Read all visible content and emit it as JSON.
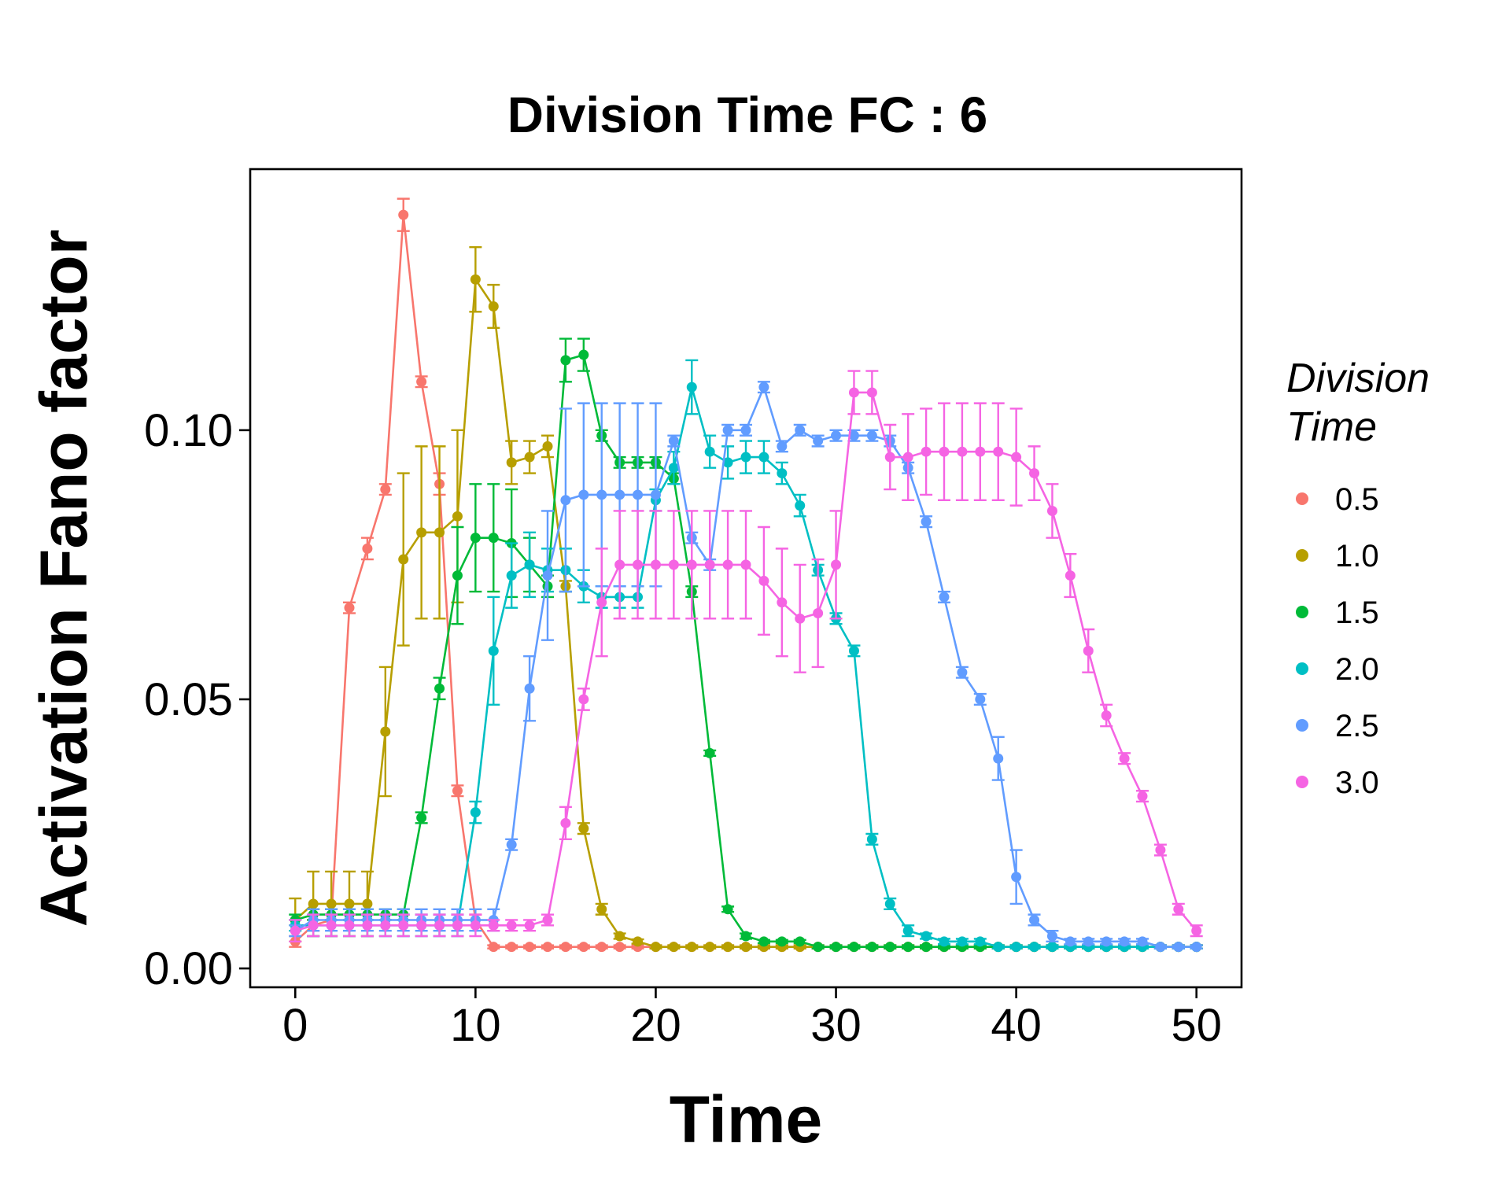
{
  "chart_data": {
    "type": "line",
    "title": "Division Time FC : 6",
    "xlabel": "Time",
    "ylabel": "Activation Fano factor",
    "xlim": [
      -2.5,
      52.5
    ],
    "ylim": [
      -0.0035,
      0.1485
    ],
    "x_ticks": [
      0,
      10,
      20,
      30,
      40,
      50
    ],
    "x_tick_labels": [
      "0",
      "10",
      "20",
      "30",
      "40",
      "50"
    ],
    "y_ticks": [
      0.0,
      0.05,
      0.1
    ],
    "y_tick_labels": [
      "0.00",
      "0.05",
      "0.10"
    ],
    "grid": false,
    "legend": {
      "title_lines": [
        "Division",
        "Time"
      ],
      "placement": "right"
    },
    "series": [
      {
        "name": "0.5",
        "color": "#F8766D",
        "x": [
          0,
          1,
          2,
          3,
          4,
          5,
          6,
          7,
          8,
          9,
          10,
          11,
          12,
          13,
          14,
          15,
          16,
          17,
          18,
          19,
          20,
          21,
          22,
          23,
          24,
          25,
          26,
          27,
          28,
          29,
          30,
          31,
          32,
          33,
          34,
          35,
          36,
          37,
          38,
          39,
          40,
          41,
          42,
          43,
          44,
          45,
          46,
          47,
          48,
          49,
          50
        ],
        "y": [
          0.005,
          0.008,
          0.009,
          0.067,
          0.078,
          0.089,
          0.14,
          0.109,
          0.09,
          0.033,
          0.009,
          0.004,
          0.004,
          0.004,
          0.004,
          0.004,
          0.004,
          0.004,
          0.004,
          0.004,
          0.004,
          0.004,
          0.004,
          0.004,
          0.004,
          0.004,
          0.004,
          0.004,
          0.004,
          0.004,
          0.004,
          0.004,
          0.004,
          0.004,
          0.004,
          0.004,
          0.004,
          0.004,
          0.004,
          0.004,
          0.004,
          0.004,
          0.004,
          0.004,
          0.004,
          0.004,
          0.004,
          0.004,
          0.004,
          0.004,
          0.004
        ],
        "err": [
          0.001,
          0.001,
          0.001,
          0.001,
          0.002,
          0.001,
          0.003,
          0.001,
          0.002,
          0.001,
          0.001,
          0.0003,
          0.0003,
          0.0003,
          0.0003,
          0.0003,
          0.0003,
          0.0003,
          0.0003,
          0.0003,
          0.0003,
          0.0003,
          0.0003,
          0.0003,
          0.0003,
          0.0003,
          0.0003,
          0.0003,
          0.0003,
          0.0003,
          0.0003,
          0.0003,
          0.0003,
          0.0003,
          0.0003,
          0.0003,
          0.0003,
          0.0003,
          0.0003,
          0.0003,
          0.0003,
          0.0003,
          0.0003,
          0.0003,
          0.0003,
          0.0003,
          0.0003,
          0.0003,
          0.0003,
          0.0003,
          0.0003
        ]
      },
      {
        "name": "1.0",
        "color": "#B79F00",
        "x": [
          0,
          1,
          2,
          3,
          4,
          5,
          6,
          7,
          8,
          9,
          10,
          11,
          12,
          13,
          14,
          15,
          16,
          17,
          18,
          19,
          20,
          21,
          22,
          23,
          24,
          25,
          26,
          27,
          28,
          29,
          30,
          31,
          32,
          33,
          34,
          35,
          36,
          37,
          38,
          39,
          40,
          41,
          42,
          43,
          44,
          45,
          46,
          47,
          48,
          49,
          50
        ],
        "y": [
          0.009,
          0.012,
          0.012,
          0.012,
          0.012,
          0.044,
          0.076,
          0.081,
          0.081,
          0.084,
          0.128,
          0.123,
          0.094,
          0.095,
          0.097,
          0.071,
          0.026,
          0.011,
          0.006,
          0.005,
          0.004,
          0.004,
          0.004,
          0.004,
          0.004,
          0.004,
          0.004,
          0.004,
          0.004,
          0.004,
          0.004,
          0.004,
          0.004,
          0.004,
          0.004,
          0.004,
          0.004,
          0.004,
          0.004,
          0.004,
          0.004,
          0.004,
          0.004,
          0.004,
          0.004,
          0.004,
          0.004,
          0.004,
          0.004,
          0.004,
          0.004
        ],
        "err": [
          0.004,
          0.006,
          0.006,
          0.006,
          0.006,
          0.012,
          0.016,
          0.016,
          0.016,
          0.016,
          0.006,
          0.004,
          0.004,
          0.003,
          0.002,
          0.001,
          0.001,
          0.001,
          0.0005,
          0.0004,
          0.0003,
          0.0003,
          0.0003,
          0.0003,
          0.0003,
          0.0003,
          0.0003,
          0.0003,
          0.0003,
          0.0003,
          0.0003,
          0.0003,
          0.0003,
          0.0003,
          0.0003,
          0.0003,
          0.0003,
          0.0003,
          0.0003,
          0.0003,
          0.0003,
          0.0003,
          0.0003,
          0.0003,
          0.0003,
          0.0003,
          0.0003,
          0.0003,
          0.0003,
          0.0003,
          0.0003
        ]
      },
      {
        "name": "1.5",
        "color": "#00BA38",
        "x": [
          0,
          1,
          2,
          3,
          4,
          5,
          6,
          7,
          8,
          9,
          10,
          11,
          12,
          13,
          14,
          15,
          16,
          17,
          18,
          19,
          20,
          21,
          22,
          23,
          24,
          25,
          26,
          27,
          28,
          29,
          30,
          31,
          32,
          33,
          34,
          35,
          36,
          37,
          38,
          39,
          40,
          41,
          42,
          43,
          44,
          45,
          46,
          47,
          48,
          49,
          50
        ],
        "y": [
          0.009,
          0.01,
          0.01,
          0.01,
          0.01,
          0.01,
          0.01,
          0.028,
          0.052,
          0.073,
          0.08,
          0.08,
          0.079,
          0.075,
          0.071,
          0.113,
          0.114,
          0.099,
          0.094,
          0.094,
          0.094,
          0.091,
          0.07,
          0.04,
          0.011,
          0.006,
          0.005,
          0.005,
          0.005,
          0.004,
          0.004,
          0.004,
          0.004,
          0.004,
          0.004,
          0.004,
          0.004,
          0.004,
          0.004,
          0.004,
          0.004,
          0.004,
          0.004,
          0.004,
          0.004,
          0.004,
          0.004,
          0.004,
          0.004,
          0.004,
          0.004
        ],
        "err": [
          0.001,
          0.001,
          0.001,
          0.001,
          0.001,
          0.001,
          0.001,
          0.001,
          0.002,
          0.009,
          0.01,
          0.01,
          0.01,
          0.005,
          0.002,
          0.004,
          0.003,
          0.001,
          0.001,
          0.001,
          0.001,
          0.001,
          0.001,
          0.0005,
          0.0005,
          0.0005,
          0.0003,
          0.0003,
          0.0003,
          0.0003,
          0.0003,
          0.0003,
          0.0003,
          0.0003,
          0.0003,
          0.0003,
          0.0003,
          0.0003,
          0.0003,
          0.0003,
          0.0003,
          0.0003,
          0.0003,
          0.0003,
          0.0003,
          0.0003,
          0.0003,
          0.0003,
          0.0003,
          0.0003,
          0.0003
        ]
      },
      {
        "name": "2.0",
        "color": "#00BFC4",
        "x": [
          0,
          1,
          2,
          3,
          4,
          5,
          6,
          7,
          8,
          9,
          10,
          11,
          12,
          13,
          14,
          15,
          16,
          17,
          18,
          19,
          20,
          21,
          22,
          23,
          24,
          25,
          26,
          27,
          28,
          29,
          30,
          31,
          32,
          33,
          34,
          35,
          36,
          37,
          38,
          39,
          40,
          41,
          42,
          43,
          44,
          45,
          46,
          47,
          48,
          49,
          50
        ],
        "y": [
          0.008,
          0.008,
          0.008,
          0.008,
          0.008,
          0.008,
          0.008,
          0.008,
          0.008,
          0.008,
          0.029,
          0.059,
          0.073,
          0.075,
          0.074,
          0.074,
          0.071,
          0.069,
          0.069,
          0.069,
          0.087,
          0.093,
          0.108,
          0.096,
          0.094,
          0.095,
          0.095,
          0.092,
          0.086,
          0.074,
          0.065,
          0.059,
          0.024,
          0.012,
          0.007,
          0.006,
          0.005,
          0.005,
          0.005,
          0.004,
          0.004,
          0.004,
          0.004,
          0.004,
          0.004,
          0.004,
          0.004,
          0.004,
          0.004,
          0.004,
          0.004
        ],
        "err": [
          0.001,
          0.002,
          0.002,
          0.002,
          0.002,
          0.002,
          0.002,
          0.002,
          0.002,
          0.002,
          0.002,
          0.01,
          0.006,
          0.006,
          0.004,
          0.004,
          0.003,
          0.002,
          0.002,
          0.002,
          0.002,
          0.003,
          0.005,
          0.003,
          0.003,
          0.003,
          0.003,
          0.002,
          0.002,
          0.001,
          0.001,
          0.001,
          0.001,
          0.001,
          0.001,
          0.0005,
          0.0005,
          0.0005,
          0.0005,
          0.0003,
          0.0003,
          0.0003,
          0.0003,
          0.0003,
          0.0003,
          0.0003,
          0.0003,
          0.0003,
          0.0003,
          0.0003,
          0.0003
        ]
      },
      {
        "name": "2.5",
        "color": "#619CFF",
        "x": [
          0,
          1,
          2,
          3,
          4,
          5,
          6,
          7,
          8,
          9,
          10,
          11,
          12,
          13,
          14,
          15,
          16,
          17,
          18,
          19,
          20,
          21,
          22,
          23,
          24,
          25,
          26,
          27,
          28,
          29,
          30,
          31,
          32,
          33,
          34,
          35,
          36,
          37,
          38,
          39,
          40,
          41,
          42,
          43,
          44,
          45,
          46,
          47,
          48,
          49,
          50
        ],
        "y": [
          0.007,
          0.009,
          0.009,
          0.009,
          0.009,
          0.009,
          0.009,
          0.009,
          0.009,
          0.009,
          0.009,
          0.009,
          0.023,
          0.052,
          0.073,
          0.087,
          0.088,
          0.088,
          0.088,
          0.088,
          0.088,
          0.098,
          0.08,
          0.075,
          0.1,
          0.1,
          0.108,
          0.097,
          0.1,
          0.098,
          0.099,
          0.099,
          0.099,
          0.098,
          0.093,
          0.083,
          0.069,
          0.055,
          0.05,
          0.039,
          0.017,
          0.009,
          0.006,
          0.005,
          0.005,
          0.005,
          0.005,
          0.005,
          0.004,
          0.004,
          0.004
        ],
        "err": [
          0.001,
          0.002,
          0.002,
          0.002,
          0.002,
          0.002,
          0.002,
          0.002,
          0.002,
          0.002,
          0.002,
          0.002,
          0.001,
          0.006,
          0.012,
          0.017,
          0.017,
          0.017,
          0.017,
          0.017,
          0.017,
          0.001,
          0.001,
          0.001,
          0.001,
          0.001,
          0.001,
          0.001,
          0.001,
          0.001,
          0.001,
          0.001,
          0.001,
          0.001,
          0.001,
          0.001,
          0.001,
          0.001,
          0.001,
          0.004,
          0.005,
          0.001,
          0.001,
          0.0005,
          0.0005,
          0.0005,
          0.0005,
          0.0005,
          0.0003,
          0.0003,
          0.0003
        ]
      },
      {
        "name": "3.0",
        "color": "#F564E3",
        "x": [
          0,
          1,
          2,
          3,
          4,
          5,
          6,
          7,
          8,
          9,
          10,
          11,
          12,
          13,
          14,
          15,
          16,
          17,
          18,
          19,
          20,
          21,
          22,
          23,
          24,
          25,
          26,
          27,
          28,
          29,
          30,
          31,
          32,
          33,
          34,
          35,
          36,
          37,
          38,
          39,
          40,
          41,
          42,
          43,
          44,
          45,
          46,
          47,
          48,
          49,
          50
        ],
        "y": [
          0.007,
          0.008,
          0.008,
          0.008,
          0.008,
          0.008,
          0.008,
          0.008,
          0.008,
          0.008,
          0.008,
          0.008,
          0.008,
          0.008,
          0.009,
          0.027,
          0.05,
          0.068,
          0.075,
          0.075,
          0.075,
          0.075,
          0.075,
          0.075,
          0.075,
          0.075,
          0.072,
          0.068,
          0.065,
          0.066,
          0.075,
          0.107,
          0.107,
          0.095,
          0.095,
          0.096,
          0.096,
          0.096,
          0.096,
          0.096,
          0.095,
          0.092,
          0.085,
          0.073,
          0.059,
          0.047,
          0.039,
          0.032,
          0.022,
          0.011,
          0.007
        ],
        "err": [
          0.002,
          0.002,
          0.002,
          0.002,
          0.002,
          0.002,
          0.002,
          0.002,
          0.002,
          0.002,
          0.002,
          0.001,
          0.001,
          0.001,
          0.001,
          0.003,
          0.002,
          0.01,
          0.01,
          0.01,
          0.01,
          0.01,
          0.01,
          0.01,
          0.01,
          0.01,
          0.01,
          0.01,
          0.01,
          0.01,
          0.01,
          0.004,
          0.004,
          0.006,
          0.008,
          0.008,
          0.009,
          0.009,
          0.009,
          0.009,
          0.009,
          0.005,
          0.005,
          0.004,
          0.004,
          0.002,
          0.001,
          0.001,
          0.001,
          0.001,
          0.001
        ]
      }
    ]
  }
}
